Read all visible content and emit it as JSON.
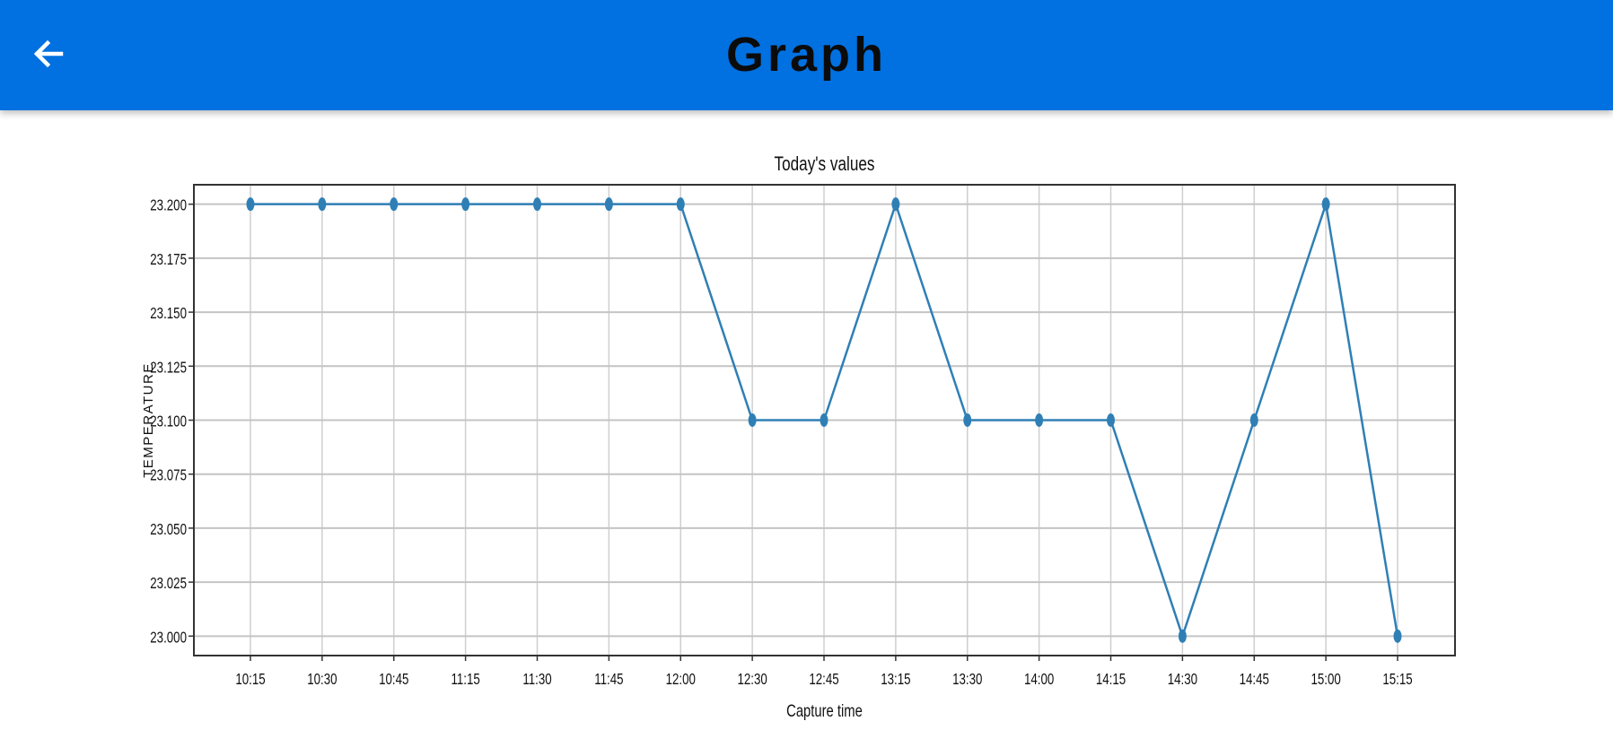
{
  "header": {
    "title": "Graph",
    "back_icon": "arrow-back-icon",
    "accent": "#0170e0"
  },
  "chart_data": {
    "type": "line",
    "title": "Today's values",
    "xlabel": "Capture time",
    "ylabel": "TEMPERATURE",
    "categories": [
      "10:15",
      "10:30",
      "10:45",
      "11:15",
      "11:30",
      "11:45",
      "12:00",
      "12:30",
      "12:45",
      "13:15",
      "13:30",
      "14:00",
      "14:15",
      "14:30",
      "14:45",
      "15:00",
      "15:15"
    ],
    "series": [
      {
        "values": [
          23.2,
          23.2,
          23.2,
          23.2,
          23.2,
          23.2,
          23.2,
          23.1,
          23.1,
          23.2,
          23.1,
          23.1,
          23.1,
          23.0,
          23.1,
          23.2,
          23.0
        ],
        "color": "#2f7fb5",
        "marker": "circle"
      }
    ],
    "yticks": [
      "23.000",
      "23.025",
      "23.050",
      "23.075",
      "23.100",
      "23.125",
      "23.150",
      "23.175",
      "23.200"
    ],
    "ylim": [
      22.991,
      23.209
    ],
    "grid": true,
    "legend": "none"
  }
}
